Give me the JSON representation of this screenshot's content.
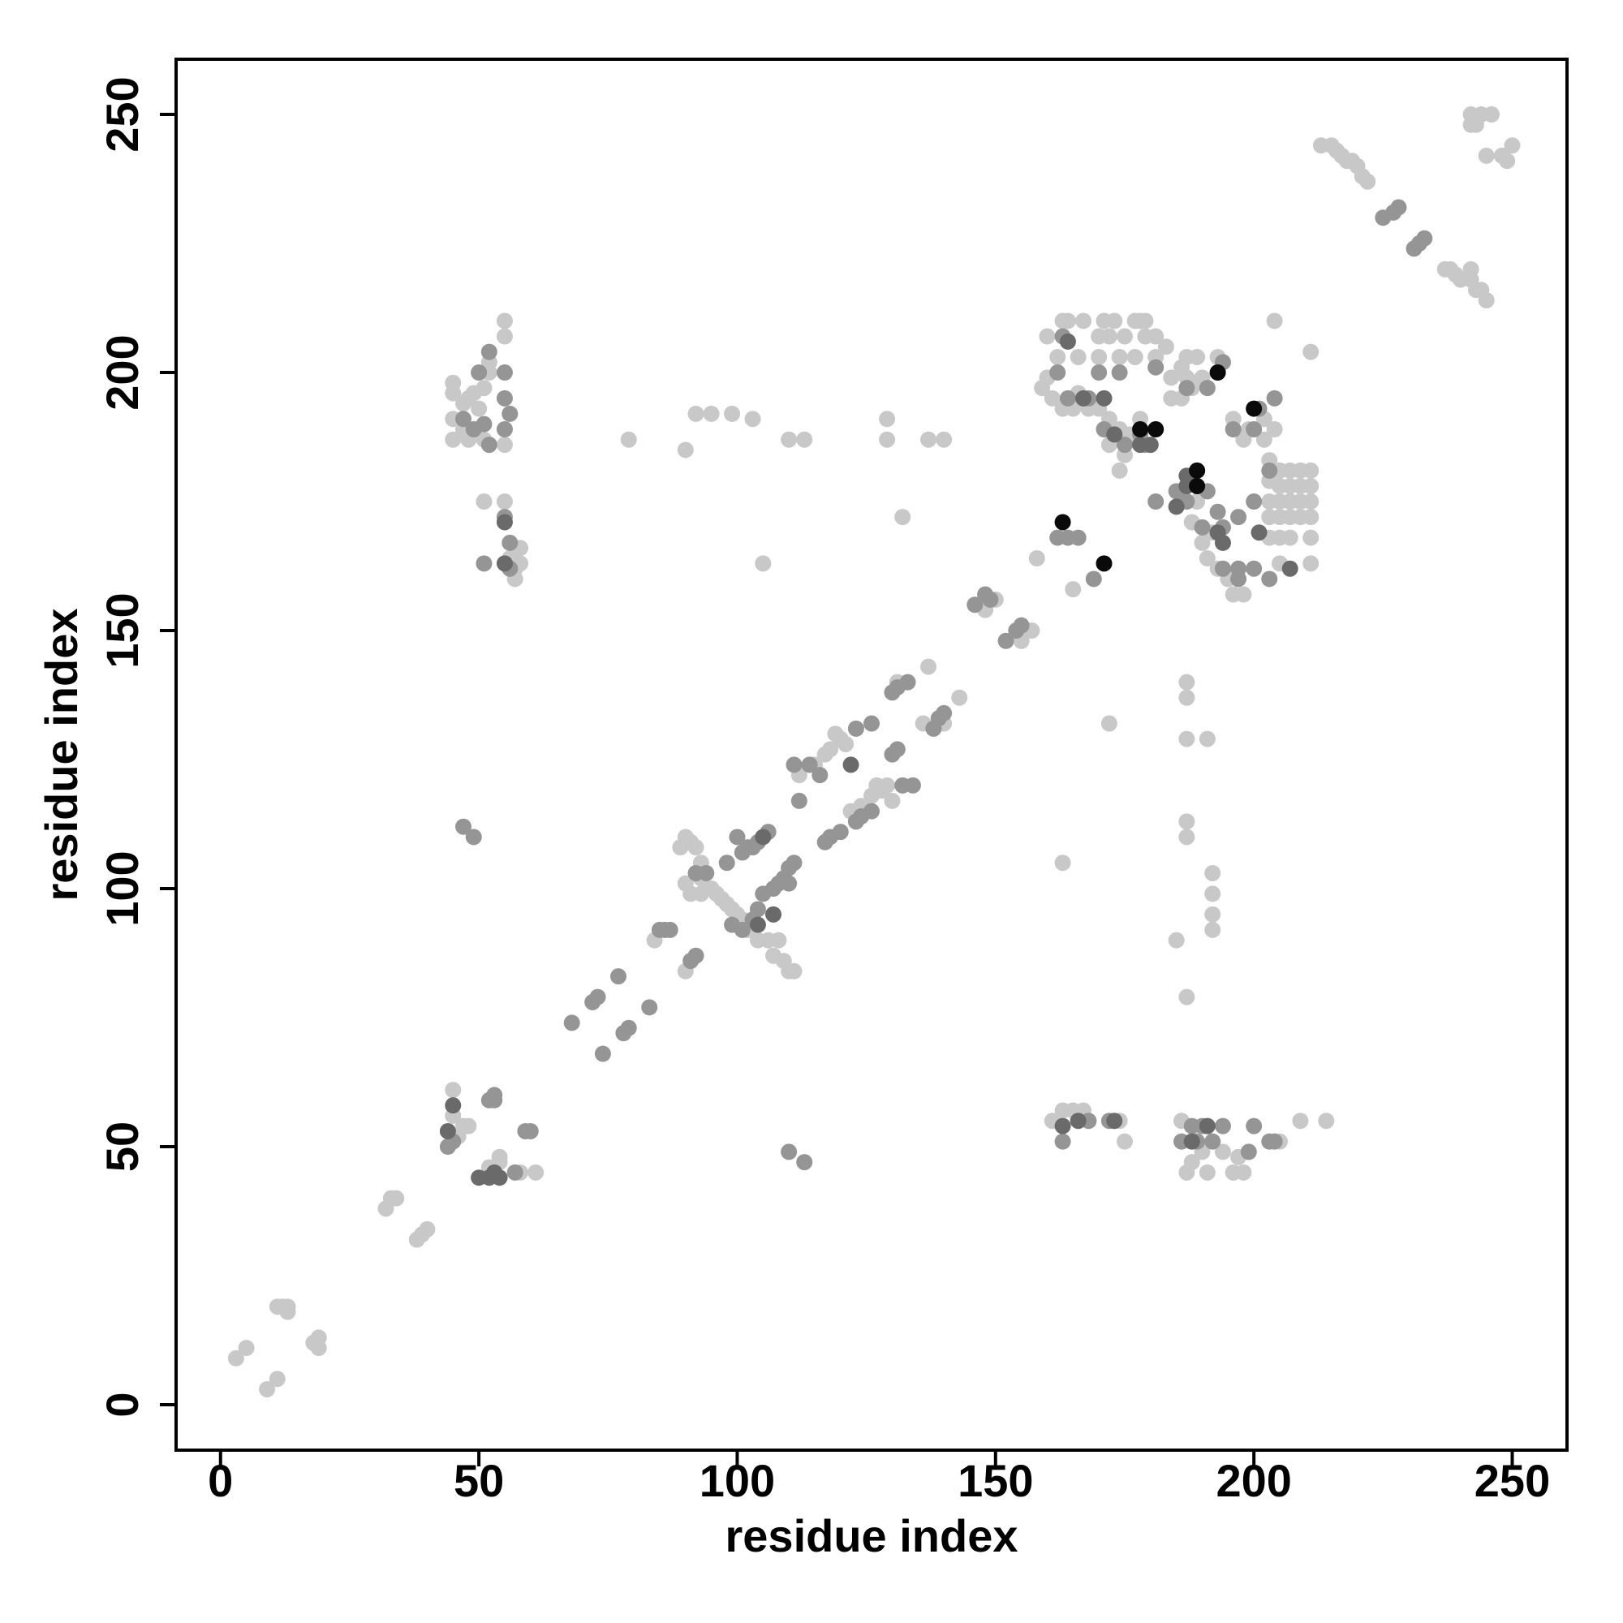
{
  "chart_data": {
    "type": "scatter",
    "xlabel": "residue index",
    "ylabel": "residue index",
    "xlim": [
      -8.6,
      260.6
    ],
    "ylim": [
      -8.8,
      260.7
    ],
    "xticks": [
      0,
      50,
      100,
      150,
      200,
      250
    ],
    "yticks": [
      0,
      50,
      100,
      150,
      200,
      250
    ],
    "series": [
      {
        "color": "#c8c8c8",
        "x": [
          3,
          5,
          9,
          11,
          11,
          12,
          13,
          13,
          19,
          19,
          18,
          32,
          33,
          34,
          38,
          39,
          40,
          45,
          45,
          46,
          47,
          48,
          52,
          53,
          54,
          54,
          58,
          61,
          84,
          85,
          90,
          90,
          91,
          92,
          93,
          93,
          95,
          96,
          97,
          98,
          99,
          100,
          101,
          102,
          103,
          104,
          106,
          108,
          107,
          109,
          110,
          111,
          90,
          91,
          89,
          93,
          112,
          115,
          117,
          118,
          119,
          120,
          121,
          122,
          124,
          126,
          127,
          128,
          129,
          130,
          131,
          137,
          136,
          140,
          143,
          148,
          150,
          155,
          157,
          165,
          158,
          79,
          90,
          92,
          95,
          99,
          103,
          110,
          113,
          105,
          129,
          129,
          132,
          137,
          140,
          172,
          187,
          187,
          187,
          191,
          187,
          187,
          192,
          192,
          192,
          192,
          185,
          187,
          163,
          45,
          45,
          45,
          45,
          47,
          47,
          48,
          48,
          49,
          50,
          51,
          51,
          52,
          52,
          55,
          55,
          55,
          51,
          55,
          56,
          57,
          57,
          58,
          58,
          161,
          163,
          165,
          167,
          174,
          175,
          186,
          187,
          188,
          190,
          191,
          194,
          196,
          198,
          197,
          205,
          209,
          214,
          163,
          164,
          167,
          171,
          173,
          177,
          178,
          179,
          170,
          172,
          175,
          179,
          181,
          160,
          162,
          166,
          170,
          174,
          177,
          181,
          183,
          187,
          189,
          160,
          159,
          161,
          163,
          165,
          166,
          168,
          170,
          172,
          174,
          176,
          184,
          186,
          187,
          184,
          186,
          188,
          190,
          193,
          204,
          211,
          196,
          199,
          202,
          202,
          198,
          204,
          203,
          205,
          207,
          209,
          211,
          203,
          205,
          207,
          209,
          211,
          203,
          205,
          207,
          209,
          211,
          203,
          205,
          207,
          209,
          211,
          203,
          205,
          207,
          211,
          205,
          211,
          196,
          198,
          195,
          193,
          191,
          190,
          192,
          188,
          186,
          189,
          174,
          176,
          175,
          172,
          178,
          213,
          215,
          216,
          217,
          218,
          219,
          220,
          221,
          222,
          242,
          242,
          244,
          246,
          250,
          248,
          249,
          245,
          243,
          237,
          239,
          240,
          242,
          243,
          244,
          245,
          242,
          238
        ],
        "y": [
          9,
          11,
          3,
          5,
          19,
          19,
          18,
          19,
          11,
          13,
          12,
          38,
          40,
          40,
          32,
          33,
          34,
          61,
          56,
          52,
          54,
          54,
          46,
          45,
          48,
          47,
          45,
          45,
          90,
          92,
          84,
          110,
          109,
          108,
          105,
          102,
          100,
          99,
          98,
          97,
          96,
          95,
          94,
          92,
          93,
          90,
          90,
          90,
          87,
          86,
          84,
          84,
          101,
          99,
          108,
          99,
          122,
          124,
          126,
          127,
          130,
          129,
          128,
          115,
          116,
          118,
          120,
          119,
          120,
          117,
          140,
          143,
          132,
          132,
          137,
          154,
          156,
          148,
          150,
          158,
          164,
          187,
          185,
          192,
          192,
          192,
          191,
          187,
          187,
          163,
          191,
          187,
          172,
          187,
          187,
          132,
          140,
          137,
          129,
          129,
          113,
          110,
          103,
          99,
          95,
          92,
          90,
          79,
          105,
          198,
          196,
          191,
          187,
          194,
          189,
          187,
          195,
          196,
          193,
          187,
          197,
          200,
          202,
          207,
          210,
          186,
          175,
          175,
          164,
          162,
          160,
          166,
          163,
          55,
          57,
          57,
          57,
          55,
          51,
          55,
          45,
          47,
          49,
          45,
          49,
          45,
          45,
          48,
          51,
          55,
          55,
          210,
          210,
          210,
          210,
          210,
          210,
          210,
          210,
          207,
          207,
          207,
          207,
          207,
          207,
          203,
          203,
          203,
          203,
          203,
          203,
          205,
          203,
          203,
          199,
          197,
          195,
          193,
          193,
          196,
          193,
          193,
          191,
          189,
          188,
          199,
          201,
          199,
          195,
          195,
          197,
          199,
          203,
          210,
          204,
          191,
          189,
          191,
          187,
          187,
          189,
          183,
          181,
          181,
          181,
          181,
          179,
          178,
          178,
          178,
          178,
          175,
          175,
          175,
          175,
          175,
          172,
          172,
          172,
          172,
          172,
          168,
          168,
          168,
          168,
          163,
          163,
          157,
          157,
          160,
          162,
          164,
          167,
          169,
          171,
          175,
          175,
          181,
          187,
          184,
          186,
          191,
          244,
          244,
          243,
          242,
          241,
          241,
          240,
          238,
          237,
          248,
          250,
          250,
          250,
          244,
          242,
          241,
          242,
          248,
          220,
          219,
          218,
          218,
          216,
          216,
          214,
          220,
          220
        ]
      },
      {
        "color": "#959595",
        "x": [
          68,
          72,
          73,
          74,
          77,
          78,
          79,
          83,
          85,
          86,
          87,
          91,
          92,
          92,
          94,
          98,
          100,
          101,
          102,
          103,
          104,
          106,
          99,
          101,
          103,
          104,
          105,
          107,
          109,
          110,
          111,
          108,
          110,
          112,
          111,
          114,
          116,
          117,
          118,
          120,
          123,
          126,
          123,
          124,
          126,
          130,
          131,
          133,
          130,
          131,
          132,
          134,
          138,
          139,
          140,
          146,
          148,
          149,
          152,
          154,
          155,
          164,
          47,
          49,
          110,
          113,
          59,
          60,
          52,
          53,
          53,
          57,
          44,
          45,
          50,
          51,
          49,
          52,
          55,
          55,
          55,
          56,
          55,
          56,
          56,
          51,
          52,
          47,
          163,
          168,
          172,
          186,
          188,
          190,
          189,
          192,
          194,
          200,
          199,
          204,
          203,
          163,
          162,
          164,
          170,
          174,
          181,
          187,
          191,
          193,
          194,
          196,
          201,
          204,
          200,
          203,
          200,
          197,
          200,
          197,
          194,
          193,
          191,
          187,
          185,
          181,
          190,
          194,
          197,
          168,
          171,
          175,
          178,
          179,
          166,
          169,
          162,
          203,
          225,
          227,
          228,
          232,
          233,
          231
        ],
        "y": [
          74,
          78,
          79,
          68,
          83,
          72,
          73,
          77,
          92,
          92,
          92,
          86,
          87,
          103,
          103,
          105,
          110,
          107,
          108,
          108,
          109,
          111,
          93,
          92,
          94,
          96,
          99,
          100,
          102,
          104,
          105,
          101,
          101,
          117,
          124,
          124,
          122,
          109,
          110,
          111,
          131,
          132,
          113,
          114,
          115,
          138,
          139,
          140,
          126,
          127,
          120,
          120,
          131,
          133,
          134,
          155,
          157,
          156,
          148,
          150,
          151,
          168,
          112,
          110,
          49,
          47,
          53,
          53,
          59,
          59,
          60,
          45,
          50,
          51,
          200,
          190,
          189,
          204,
          200,
          195,
          189,
          192,
          172,
          167,
          162,
          163,
          186,
          191,
          51,
          55,
          55,
          51,
          54,
          54,
          51,
          51,
          54,
          54,
          49,
          51,
          51,
          207,
          200,
          195,
          200,
          200,
          201,
          197,
          197,
          200,
          202,
          189,
          193,
          195,
          189,
          181,
          175,
          172,
          162,
          162,
          162,
          173,
          177,
          175,
          177,
          175,
          170,
          170,
          160,
          195,
          189,
          186,
          188,
          186,
          168,
          160,
          168,
          160,
          230,
          231,
          232,
          225,
          226,
          224
        ]
      },
      {
        "color": "#6a6a6a",
        "x": [
          44,
          50,
          52,
          54,
          53,
          55,
          55,
          45,
          104,
          105,
          122,
          107,
          163,
          166,
          173,
          188,
          191,
          164,
          167,
          171,
          173,
          178,
          180,
          187,
          187,
          189,
          194,
          193,
          185,
          207,
          201
        ],
        "y": [
          53,
          44,
          44,
          44,
          45,
          171,
          163,
          58,
          93,
          110,
          124,
          95,
          54,
          55,
          55,
          51,
          54,
          206,
          195,
          195,
          188,
          186,
          186,
          180,
          178,
          181,
          167,
          169,
          174,
          162,
          169
        ]
      },
      {
        "color": "#0a0a0a",
        "x": [
          163,
          171,
          178,
          181,
          189,
          189,
          193,
          200
        ],
        "y": [
          171,
          163,
          189,
          189,
          181,
          178,
          200,
          193
        ]
      }
    ]
  }
}
